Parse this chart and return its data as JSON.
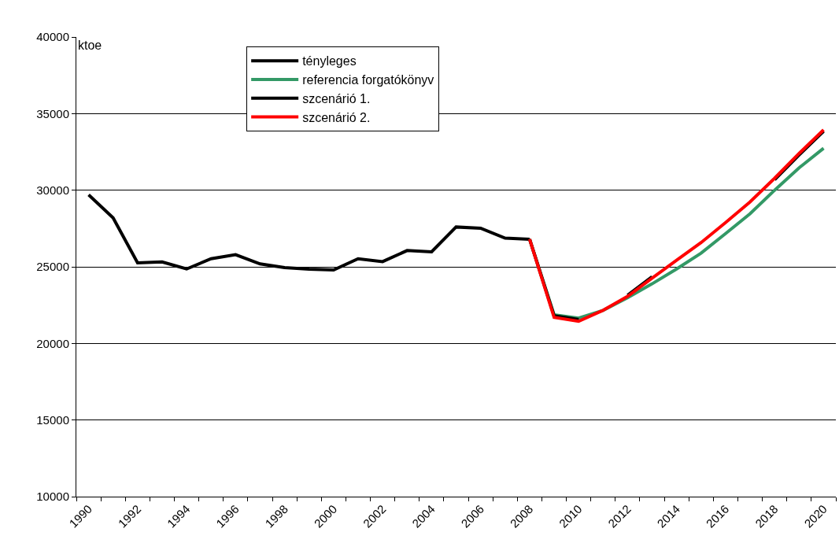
{
  "chart_data": {
    "type": "line",
    "ylabel": "ktoe",
    "categories": [
      "1990",
      null,
      "1992",
      null,
      "1994",
      null,
      "1996",
      null,
      "1998",
      null,
      "2000",
      null,
      "2002",
      null,
      "2004",
      null,
      "2006",
      null,
      "2008",
      null,
      "2010",
      null,
      "2012",
      null,
      "2014",
      null,
      "2016",
      null,
      "2018",
      null,
      "2020"
    ],
    "series": [
      {
        "name": "tényleges",
        "color": "#000000",
        "values": [
          29700,
          28200,
          25260,
          25320,
          24860,
          25530,
          25790,
          25190,
          24950,
          24850,
          24790,
          25530,
          25340,
          26060,
          25980,
          27600,
          27520,
          26870,
          26800,
          null,
          null,
          null,
          null,
          null,
          null,
          null,
          null,
          null,
          null,
          null,
          null
        ]
      },
      {
        "name": "referencia forgatókönyv",
        "color": "#339966",
        "values": [
          null,
          null,
          null,
          null,
          null,
          null,
          null,
          null,
          null,
          null,
          null,
          null,
          null,
          null,
          null,
          null,
          null,
          null,
          26800,
          21870,
          21650,
          22160,
          22980,
          23890,
          24860,
          25890,
          27170,
          28470,
          30000,
          31460,
          32740
        ]
      },
      {
        "name": "szcenárió 1.",
        "color": "#000000",
        "values": [
          null,
          null,
          null,
          null,
          null,
          null,
          null,
          null,
          null,
          null,
          null,
          null,
          null,
          null,
          null,
          null,
          null,
          null,
          26800,
          21800,
          21560,
          null,
          23150,
          24350,
          null,
          null,
          null,
          null,
          30690,
          32300,
          33850
        ]
      },
      {
        "name": "szcenárió 2.",
        "color": "#ff0000",
        "values": [
          null,
          null,
          null,
          null,
          null,
          null,
          null,
          null,
          null,
          null,
          null,
          null,
          null,
          null,
          null,
          null,
          null,
          null,
          26800,
          21700,
          21440,
          22160,
          23070,
          24260,
          25430,
          26580,
          27890,
          29240,
          30780,
          32400,
          33940
        ]
      }
    ],
    "ylim": [
      10000,
      40000
    ],
    "yticks": [
      10000,
      15000,
      20000,
      25000,
      30000,
      35000,
      40000
    ],
    "grid": "y",
    "legend": "top",
    "line_style": "solid",
    "marker": "none"
  }
}
